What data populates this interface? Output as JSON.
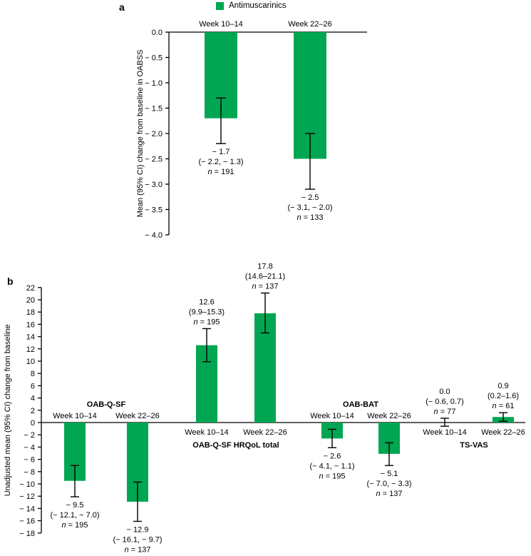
{
  "figure": {
    "panel_a_label": "a",
    "panel_b_label": "b",
    "legend": {
      "label": "Antimuscarinics",
      "color": "#00A651"
    }
  },
  "chart_data": [
    {
      "id": "a",
      "type": "bar",
      "title": "",
      "ylabel": "Mean (95% CI) change from baseline in OABSS",
      "ylim": [
        -4.0,
        0.0
      ],
      "ytick_step": 0.5,
      "ytick_labels": [
        "0.0",
        "− 0.5",
        "− 1.0",
        "− 1.5",
        "− 2.0",
        "− 2.5",
        "− 3.0",
        "− 3.5",
        "− 4.0"
      ],
      "legend": [
        "Antimuscarinics"
      ],
      "legend_position": "top",
      "grid": false,
      "bar_color": "#00A651",
      "bars": [
        {
          "category": "Week 10–14",
          "value": -1.7,
          "ci": [
            -2.2,
            -1.3
          ],
          "n": 191,
          "label_value": "− 1.7",
          "label_ci": "(− 2.2, − 1.3)",
          "label_n": "n = 191"
        },
        {
          "category": "Week 22–26",
          "value": -2.5,
          "ci": [
            -3.1,
            -2.0
          ],
          "n": 133,
          "label_value": "− 2.5",
          "label_ci": "(− 3.1, − 2.0)",
          "label_n": "n = 133"
        }
      ]
    },
    {
      "id": "b",
      "type": "bar",
      "title": "",
      "ylabel": "Unadjusted mean (95% CI) change from baseline",
      "ylim": [
        -18,
        22
      ],
      "ytick_step": 2,
      "grid": false,
      "bar_color": "#00A651",
      "groups": [
        {
          "name": "OAB-Q-SF",
          "name_position": "above",
          "bars": [
            {
              "category": "Week 10–14",
              "value": -9.5,
              "ci": [
                -12.1,
                -7.0
              ],
              "n": 195,
              "label_value": "− 9.5",
              "label_ci": "(− 12.1, − 7.0)",
              "label_n": "n = 195"
            },
            {
              "category": "Week 22–26",
              "value": -12.9,
              "ci": [
                -16.1,
                -9.7
              ],
              "n": 137,
              "label_value": "− 12.9",
              "label_ci": "(− 16.1, − 9.7)",
              "label_n": "n = 137"
            }
          ]
        },
        {
          "name": "OAB-Q-SF HRQoL total",
          "name_position": "below",
          "bars": [
            {
              "category": "Week 10–14",
              "value": 12.6,
              "ci": [
                9.9,
                15.3
              ],
              "n": 195,
              "label_value": "12.6",
              "label_ci": "(9.9–15.3)",
              "label_n": "n = 195"
            },
            {
              "category": "Week 22–26",
              "value": 17.8,
              "ci": [
                14.6,
                21.1
              ],
              "n": 137,
              "label_value": "17.8",
              "label_ci": "(14.6–21.1)",
              "label_n": "n = 137"
            }
          ]
        },
        {
          "name": "OAB-BAT",
          "name_position": "above",
          "bars": [
            {
              "category": "Week 10–14",
              "value": -2.6,
              "ci": [
                -4.1,
                -1.1
              ],
              "n": 195,
              "label_value": "− 2.6",
              "label_ci": "(− 4.1, − 1.1)",
              "label_n": "n = 195"
            },
            {
              "category": "Week 22–26",
              "value": -5.1,
              "ci": [
                -7.0,
                -3.3
              ],
              "n": 137,
              "label_value": "− 5.1",
              "label_ci": "(− 7.0, − 3.3)",
              "label_n": "n = 137"
            }
          ]
        },
        {
          "name": "TS-VAS",
          "name_position": "below",
          "bars": [
            {
              "category": "Week 10–14",
              "value": 0.0,
              "ci": [
                -0.6,
                0.7
              ],
              "n": 77,
              "label_value": "0.0",
              "label_ci": "(− 0.6, 0.7)",
              "label_n": "n = 77"
            },
            {
              "category": "Week 22–26",
              "value": 0.9,
              "ci": [
                0.2,
                1.6
              ],
              "n": 61,
              "label_value": "0.9",
              "label_ci": "(0.2–1.6)",
              "label_n": "n = 61"
            }
          ]
        }
      ]
    }
  ]
}
